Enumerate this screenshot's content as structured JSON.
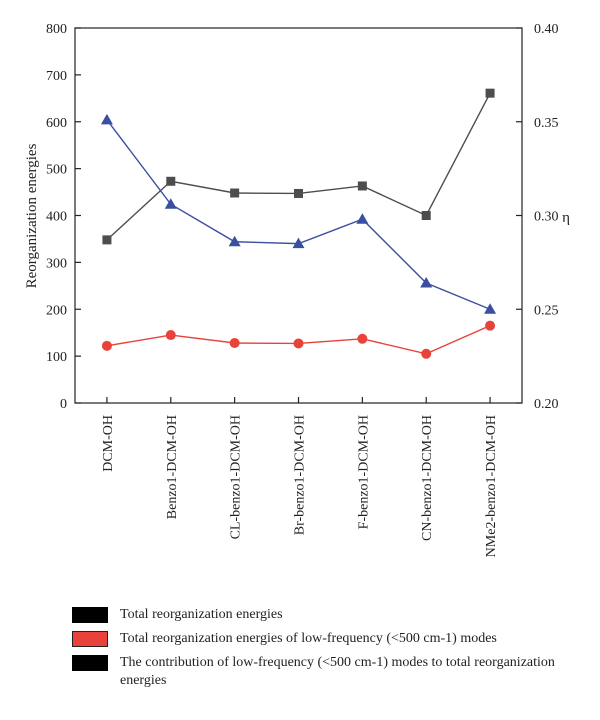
{
  "chart_data": {
    "type": "line",
    "categories": [
      "DCM-OH",
      "Benzo1-DCM-OH",
      "CL-benzo1-DCM-OH",
      "Br-benzo1-DCM-OH",
      "F-benzo1-DCM-OH",
      "CN-benzo1-DCM-OH",
      "NMe2-benzo1-DCM-OH"
    ],
    "ylabel": "Reorganization energies",
    "y2label": "η",
    "ylim": [
      0,
      800
    ],
    "y2lim": [
      0.2,
      0.4
    ],
    "yticks": [
      "0",
      "100",
      "200",
      "300",
      "400",
      "500",
      "600",
      "700",
      "800"
    ],
    "y2ticks": [
      "0.20",
      "0.25",
      "0.30",
      "0.35",
      "0.40"
    ],
    "series": [
      {
        "name": "Total reorganization energies",
        "axis": "left",
        "marker": "square",
        "color": "#4d4d4d",
        "values": [
          348,
          473,
          448,
          447,
          463,
          400,
          661
        ]
      },
      {
        "name": "Total reorganization energies of low-frequency (<500 cm-1) modes",
        "axis": "left",
        "marker": "circle",
        "color": "#e8423a",
        "values": [
          122,
          145,
          128,
          127,
          137,
          105,
          165
        ]
      },
      {
        "name": "The contribution of low-frequency (<500 cm-1) modes to total reorganization energies",
        "axis": "right",
        "marker": "triangle",
        "color": "#3a4fa0",
        "values": [
          0.351,
          0.306,
          0.286,
          0.285,
          0.298,
          0.264,
          0.25
        ]
      }
    ],
    "legend_position": "bottom",
    "grid": false
  },
  "legend": {
    "swatch_color": "#000000",
    "swatch_color_red": "#e8423a"
  }
}
